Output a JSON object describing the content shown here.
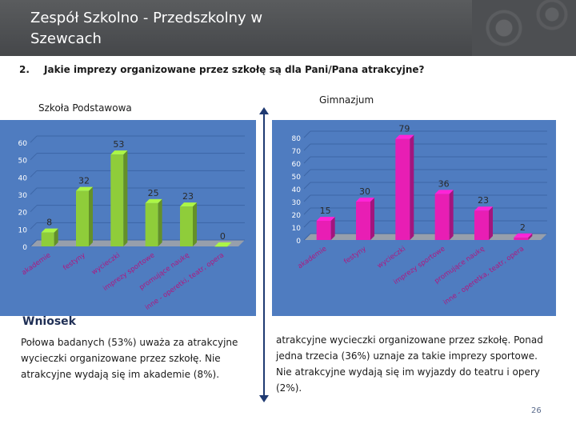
{
  "slide": {
    "title": "Zespół Szkolno - Przedszkolny w Szewcach",
    "question_number": "2.",
    "question": "Jakie imprezy organizowane przez szkołę są dla Pani/Pana atrakcyjne?",
    "conclusion_title": "Wniosek",
    "conclusion_left": "Połowa badanych (53%) uważa za atrakcyjne wycieczki organizowane przez szkołę. Nie atrakcyjne wydają się im akademie (8%).",
    "conclusion_right": "atrakcyjne wycieczki organizowane przez szkołę. Ponad jedna trzecia (36%) uznaje za takie imprezy sportowe. Nie atrakcyjne wydają się im wyjazdy do teatru i opery (2%).",
    "page_number": "26",
    "colors": {
      "panel": "#4f7cc0",
      "bar_green": "#8fcd3a",
      "bar_magenta": "#e81eb4",
      "divider": "#1f3a72"
    }
  },
  "chart_data": [
    {
      "type": "bar",
      "title": "Szkoła  Podstawowa",
      "categories": [
        "akademie",
        "festyny",
        "wycieczki",
        "imprezy sportowe",
        "promujące naukę",
        "inne - operetki, teatr, opera"
      ],
      "values": [
        8,
        32,
        53,
        25,
        23,
        0
      ],
      "ylim": [
        0,
        60
      ],
      "yticks": [
        0,
        10,
        20,
        30,
        40,
        50,
        60
      ],
      "bar_color": "#8fcd3a",
      "grid": true
    },
    {
      "type": "bar",
      "title": "Gimnazjum",
      "categories": [
        "akademie",
        "festyny",
        "wycieczki",
        "imprezy sportowe",
        "promujące naukę",
        "inne - operetka, teatr, opera"
      ],
      "values": [
        15,
        30,
        79,
        36,
        23,
        2
      ],
      "ylim": [
        0,
        80
      ],
      "yticks": [
        0,
        10,
        20,
        30,
        40,
        50,
        60,
        70,
        80
      ],
      "bar_color": "#e81eb4",
      "grid": true
    }
  ]
}
